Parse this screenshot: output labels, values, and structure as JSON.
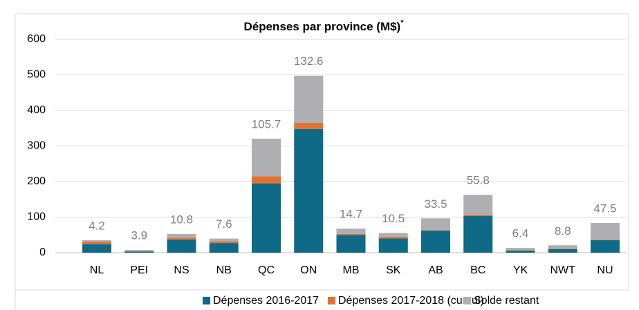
{
  "chart_data": {
    "type": "stacked_bar",
    "title": "Dépenses par province (M$)",
    "title_note": "*",
    "categories": [
      "NL",
      "PEI",
      "NS",
      "NB",
      "QC",
      "ON",
      "MB",
      "SK",
      "AB",
      "BC",
      "YK",
      "NWT",
      "NU"
    ],
    "series": [
      {
        "name": "Dépenses 2016-2017",
        "color": "#0e6a87",
        "values": [
          24,
          3,
          37,
          27,
          195,
          348,
          50,
          40,
          62,
          103,
          6,
          10,
          35
        ]
      },
      {
        "name": "Dépenses 2017-2018 (cumul)",
        "color": "#e37232",
        "values": [
          7,
          1,
          5,
          5,
          20,
          17,
          3,
          5,
          1,
          4,
          1,
          2,
          1
        ]
      },
      {
        "name": "Solde restant",
        "color": "#aeaeb3",
        "values": [
          4.2,
          3.9,
          10.8,
          7.6,
          105.7,
          132.6,
          14.7,
          10.5,
          33.5,
          55.8,
          6.4,
          8.8,
          47.5
        ],
        "show_labels": true
      }
    ],
    "ylim": [
      0,
      600
    ],
    "yticks": [
      0,
      100,
      200,
      300,
      400,
      500,
      600
    ],
    "grid": true,
    "legend": "bottom"
  }
}
